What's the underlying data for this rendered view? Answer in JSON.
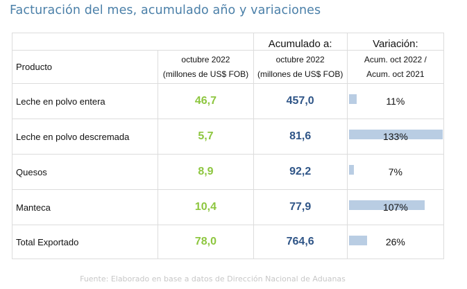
{
  "title": "Facturación del mes, acumulado año y variaciones",
  "header": {
    "accum_label": "Acumulado a:",
    "variation_label": "Variación:",
    "product_label": "Producto",
    "month_lines": [
      "octubre 2022",
      "(millones de US$ FOB)"
    ],
    "accum_lines": [
      "octubre 2022",
      "(millones de US$ FOB)"
    ],
    "variation_lines": [
      "Acum. oct 2022 /",
      "Acum. oct 2021"
    ]
  },
  "rows": [
    {
      "product": "Leche en polvo entera",
      "month": "46,7",
      "accum": "457,0",
      "variation": "11%",
      "variation_value": 11
    },
    {
      "product": "Leche en polvo descremada",
      "month": "5,7",
      "accum": "81,6",
      "variation": "133%",
      "variation_value": 133
    },
    {
      "product": "Quesos",
      "month": "8,9",
      "accum": "92,2",
      "variation": "7%",
      "variation_value": 7
    },
    {
      "product": "Manteca",
      "month": "10,4",
      "accum": "77,9",
      "variation": "107%",
      "variation_value": 107
    },
    {
      "product": "Total Exportado",
      "month": "78,0",
      "accum": "764,6",
      "variation": "26%",
      "variation_value": 26
    }
  ],
  "source_note": "Fuente: Elaborado en base a datos de Dirección Nacional de Aduanas",
  "colors": {
    "title": "#4a7fa8",
    "month_values": "#8dc63f",
    "accum_values": "#2f5587",
    "bar": "#b9cde3"
  }
}
